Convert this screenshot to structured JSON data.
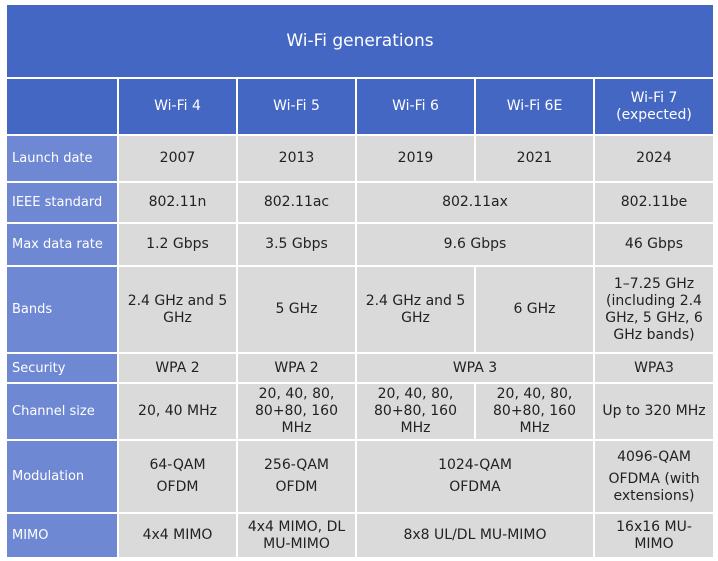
{
  "table": {
    "title": "Wi-Fi generations",
    "header": [
      "Wi-Fi 4",
      "Wi-Fi 5",
      "Wi-Fi 6",
      "Wi-Fi 6E",
      "Wi-Fi 7 (expected)"
    ],
    "rows": [
      {
        "label": "Launch date",
        "cells": [
          "2007",
          "2013",
          "2019",
          "2021",
          "2024"
        ]
      },
      {
        "label": "IEEE standard",
        "cells": [
          "802.11n",
          "802.11ac",
          "802.11ax",
          "802.11be"
        ]
      },
      {
        "label": "Max data rate",
        "cells": [
          "1.2 Gbps",
          "3.5 Gbps",
          "9.6 Gbps",
          "46 Gbps"
        ]
      },
      {
        "label": "Bands",
        "cells": [
          "2.4 GHz and 5 GHz",
          "5 GHz",
          "2.4 GHz and 5 GHz",
          "6 GHz",
          "1–7.25 GHz (including 2.4 GHz, 5 GHz, 6 GHz bands)"
        ]
      },
      {
        "label": "Security",
        "cells": [
          "WPA 2",
          "WPA 2",
          "WPA 3",
          "WPA3"
        ]
      },
      {
        "label": "Channel size",
        "cells": [
          "20, 40 MHz",
          "20, 40, 80, 80+80, 160 MHz",
          "20, 40, 80, 80+80, 160 MHz",
          "20, 40, 80, 80+80, 160 MHz",
          "Up to 320 MHz"
        ]
      },
      {
        "label": "Modulation",
        "cells": [
          [
            "64-QAM",
            "OFDM"
          ],
          [
            "256-QAM",
            "OFDM"
          ],
          [
            "1024-QAM",
            "OFDMA"
          ],
          [
            "4096-QAM",
            "OFDMA (with extensions)"
          ]
        ]
      },
      {
        "label": "MIMO",
        "cells": [
          "4x4 MIMO",
          "4x4 MIMO, DL MU-MIMO",
          "8x8 UL/DL MU-MIMO",
          "16x16 MU-MIMO"
        ]
      }
    ]
  }
}
